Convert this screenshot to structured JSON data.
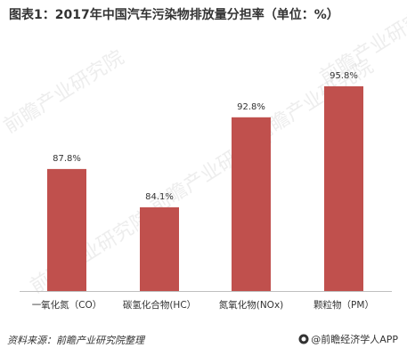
{
  "title": "图表1：2017年中国汽车污染物排放量分担率（单位：%）",
  "source": "资料来源：前瞻产业研究院整理",
  "brand": "@前瞻经济学人APP",
  "watermark": "前瞻产业研究院",
  "colors": {
    "bar": "#c0504d",
    "text": "#333333",
    "axis": "#bfbfbf"
  },
  "chart_data": {
    "type": "bar",
    "categories": [
      "一氧化氮（CO）",
      "碳氢化合物(HC）",
      "氮氧化物(NOx)",
      "颗粒物（PM）"
    ],
    "values": [
      87.8,
      84.1,
      92.8,
      95.8
    ],
    "value_labels": [
      "87.8%",
      "84.1%",
      "92.8%",
      "95.8%"
    ],
    "ylim": [
      76,
      97
    ],
    "xlabel": "",
    "ylabel": "",
    "grid": false,
    "legend": "none"
  }
}
